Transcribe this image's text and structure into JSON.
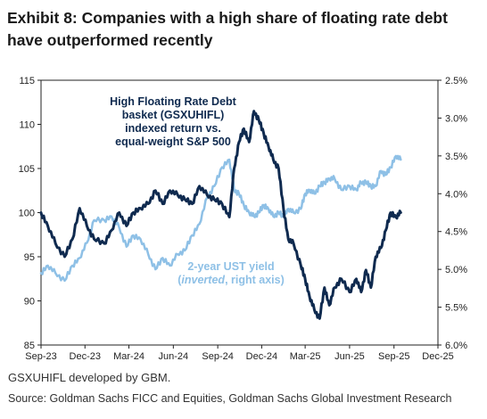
{
  "title": "Exhibit 8: Companies with a high share of floating rate debt have outperformed recently",
  "footnote": "GSXUHIFL developed by GBM.",
  "source": "Source: Goldman Sachs FICC and Equities, Goldman Sachs Global Investment Research",
  "chart_data": {
    "type": "line",
    "x_ticks": [
      "Sep-23",
      "Dec-23",
      "Mar-24",
      "Jun-24",
      "Sep-24",
      "Dec-24",
      "Mar-25",
      "Jun-25",
      "Sep-25",
      "Dec-25"
    ],
    "y_left": {
      "min": 85,
      "max": 115,
      "ticks": [
        "115",
        "110",
        "105",
        "100",
        "95",
        "90",
        "85"
      ]
    },
    "y_right": {
      "min": 2.5,
      "max": 6.0,
      "inverted": true,
      "ticks": [
        "2.5%",
        "3.0%",
        "3.5%",
        "4.0%",
        "4.5%",
        "5.0%",
        "5.5%",
        "6.0%"
      ]
    },
    "grid": false,
    "series": [
      {
        "name": "High Floating Rate Debt basket (GSXUHIFL) indexed return vs. equal-weight S&P 500",
        "axis": "left",
        "color": "#0f2a4f",
        "points": [
          [
            "2023-09-01",
            100.0
          ],
          [
            "2023-09-15",
            98.5
          ],
          [
            "2023-10-01",
            96.5
          ],
          [
            "2023-10-20",
            95.0
          ],
          [
            "2023-11-05",
            97.0
          ],
          [
            "2023-11-20",
            100.5
          ],
          [
            "2023-12-05",
            98.5
          ],
          [
            "2023-12-20",
            97.0
          ],
          [
            "2024-01-10",
            96.5
          ],
          [
            "2024-01-25",
            98.0
          ],
          [
            "2024-02-10",
            100.0
          ],
          [
            "2024-02-25",
            98.5
          ],
          [
            "2024-03-10",
            100.0
          ],
          [
            "2024-03-25",
            100.5
          ],
          [
            "2024-04-10",
            101.0
          ],
          [
            "2024-04-25",
            102.5
          ],
          [
            "2024-05-10",
            101.0
          ],
          [
            "2024-05-25",
            102.5
          ],
          [
            "2024-06-10",
            102.0
          ],
          [
            "2024-06-25",
            101.5
          ],
          [
            "2024-07-10",
            101.0
          ],
          [
            "2024-07-25",
            103.0
          ],
          [
            "2024-08-10",
            102.0
          ],
          [
            "2024-08-25",
            101.5
          ],
          [
            "2024-09-10",
            101.0
          ],
          [
            "2024-09-25",
            99.5
          ],
          [
            "2024-10-05",
            105.0
          ],
          [
            "2024-10-15",
            108.0
          ],
          [
            "2024-10-25",
            109.5
          ],
          [
            "2024-11-05",
            108.0
          ],
          [
            "2024-11-15",
            111.5
          ],
          [
            "2024-11-25",
            110.5
          ],
          [
            "2024-12-05",
            109.0
          ],
          [
            "2024-12-15",
            107.5
          ],
          [
            "2024-12-25",
            106.0
          ],
          [
            "2025-01-05",
            105.0
          ],
          [
            "2025-01-15",
            100.5
          ],
          [
            "2025-01-25",
            97.0
          ],
          [
            "2025-02-05",
            96.5
          ],
          [
            "2025-02-20",
            94.0
          ],
          [
            "2025-03-01",
            92.5
          ],
          [
            "2025-03-10",
            90.5
          ],
          [
            "2025-03-20",
            89.0
          ],
          [
            "2025-03-31",
            88.0
          ],
          [
            "2025-04-10",
            91.5
          ],
          [
            "2025-04-20",
            89.5
          ],
          [
            "2025-05-01",
            91.5
          ],
          [
            "2025-05-15",
            92.5
          ],
          [
            "2025-06-01",
            91.0
          ],
          [
            "2025-06-15",
            92.5
          ],
          [
            "2025-06-25",
            91.0
          ],
          [
            "2025-07-05",
            93.5
          ],
          [
            "2025-07-15",
            91.5
          ],
          [
            "2025-07-25",
            95.0
          ],
          [
            "2025-08-05",
            96.0
          ],
          [
            "2025-08-15",
            98.0
          ],
          [
            "2025-08-25",
            100.0
          ],
          [
            "2025-09-05",
            99.5
          ],
          [
            "2025-09-15",
            100.0
          ]
        ]
      },
      {
        "name": "2-year UST yield (inverted, right axis)",
        "axis": "right",
        "color": "#8ec0e6",
        "points": [
          [
            "2023-09-01",
            5.05
          ],
          [
            "2023-09-15",
            4.95
          ],
          [
            "2023-10-01",
            5.05
          ],
          [
            "2023-10-20",
            5.15
          ],
          [
            "2023-11-05",
            4.95
          ],
          [
            "2023-11-20",
            4.85
          ],
          [
            "2023-12-05",
            4.65
          ],
          [
            "2023-12-20",
            4.35
          ],
          [
            "2024-01-10",
            4.35
          ],
          [
            "2024-01-25",
            4.3
          ],
          [
            "2024-02-10",
            4.45
          ],
          [
            "2024-02-25",
            4.7
          ],
          [
            "2024-03-10",
            4.55
          ],
          [
            "2024-03-25",
            4.6
          ],
          [
            "2024-04-10",
            4.8
          ],
          [
            "2024-04-25",
            5.0
          ],
          [
            "2024-05-10",
            4.85
          ],
          [
            "2024-05-25",
            4.95
          ],
          [
            "2024-06-10",
            4.8
          ],
          [
            "2024-06-25",
            4.75
          ],
          [
            "2024-07-10",
            4.55
          ],
          [
            "2024-07-25",
            4.4
          ],
          [
            "2024-08-10",
            4.05
          ],
          [
            "2024-08-25",
            3.9
          ],
          [
            "2024-09-10",
            3.65
          ],
          [
            "2024-09-25",
            3.55
          ],
          [
            "2024-10-05",
            3.95
          ],
          [
            "2024-10-15",
            4.0
          ],
          [
            "2024-10-25",
            4.15
          ],
          [
            "2024-11-05",
            4.25
          ],
          [
            "2024-11-15",
            4.3
          ],
          [
            "2024-11-25",
            4.25
          ],
          [
            "2024-12-05",
            4.15
          ],
          [
            "2024-12-15",
            4.2
          ],
          [
            "2024-12-25",
            4.3
          ],
          [
            "2025-01-05",
            4.25
          ],
          [
            "2025-01-15",
            4.3
          ],
          [
            "2025-01-25",
            4.2
          ],
          [
            "2025-02-05",
            4.25
          ],
          [
            "2025-02-20",
            4.2
          ],
          [
            "2025-03-01",
            4.0
          ],
          [
            "2025-03-10",
            3.95
          ],
          [
            "2025-03-20",
            4.0
          ],
          [
            "2025-03-31",
            3.9
          ],
          [
            "2025-04-10",
            3.85
          ],
          [
            "2025-04-20",
            3.8
          ],
          [
            "2025-05-01",
            3.8
          ],
          [
            "2025-05-15",
            3.95
          ],
          [
            "2025-06-01",
            3.9
          ],
          [
            "2025-06-15",
            3.95
          ],
          [
            "2025-06-25",
            3.85
          ],
          [
            "2025-07-05",
            3.85
          ],
          [
            "2025-07-15",
            3.9
          ],
          [
            "2025-07-25",
            3.9
          ],
          [
            "2025-08-05",
            3.7
          ],
          [
            "2025-08-15",
            3.75
          ],
          [
            "2025-08-25",
            3.65
          ],
          [
            "2025-09-05",
            3.5
          ],
          [
            "2025-09-15",
            3.55
          ]
        ]
      }
    ],
    "annotations": {
      "dark_lines": [
        "High Floating Rate Debt",
        "basket (GSXUHIFL)",
        "indexed return vs.",
        "equal-weight S&P 500"
      ],
      "light_line1": "2-year UST yield",
      "light_italic": "inverted",
      "light_rest": ", right axis)",
      "light_open": "("
    }
  }
}
